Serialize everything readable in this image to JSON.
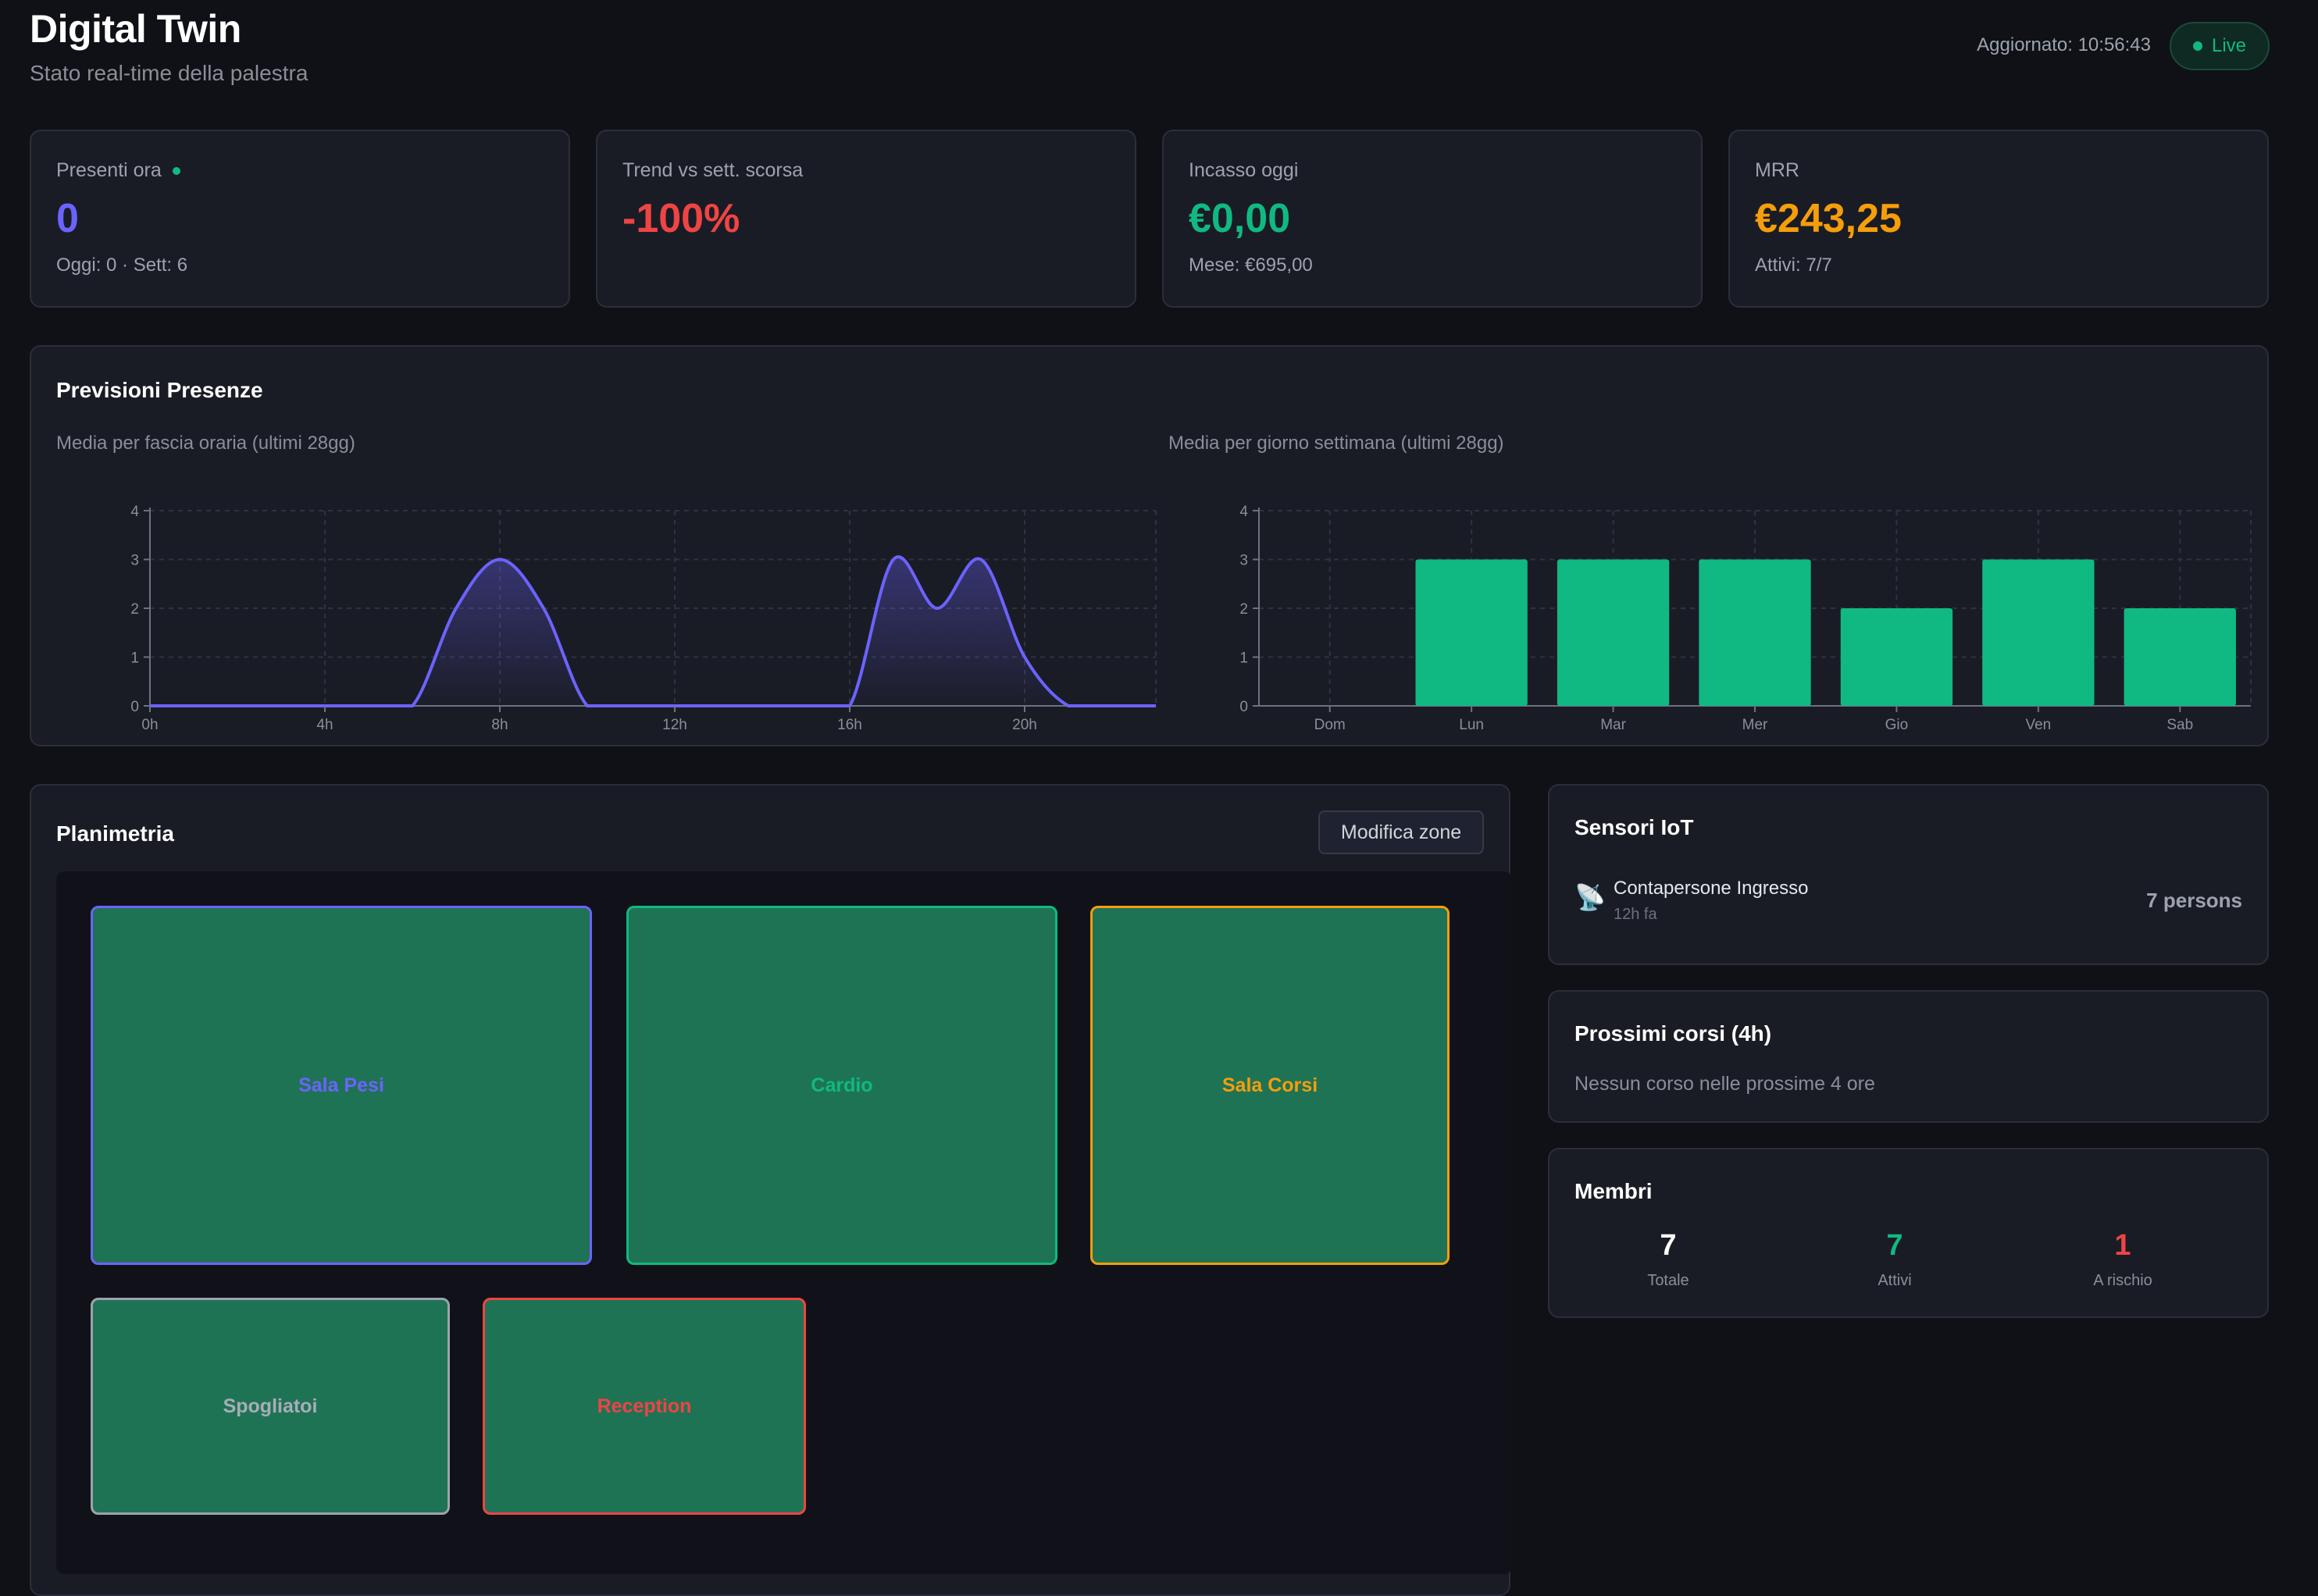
{
  "header": {
    "title": "Digital Twin",
    "subtitle": "Stato real-time della palestra",
    "updated": "Aggiornato: 10:56:43",
    "live": "Live"
  },
  "stats": [
    {
      "label": "Presenti ora",
      "value": "0",
      "note": "Oggi: 0 · Sett: 6",
      "color": "#6c63ff",
      "live_dot": true
    },
    {
      "label": "Trend vs sett. scorsa",
      "value": "-100%",
      "note": "",
      "color": "#ef4444",
      "live_dot": false
    },
    {
      "label": "Incasso oggi",
      "value": "€0,00",
      "note": "Mese: €695,00",
      "color": "#10b981",
      "live_dot": false
    },
    {
      "label": "MRR",
      "value": "€243,25",
      "note": "Attivi: 7/7",
      "color": "#f59e0b",
      "live_dot": false
    }
  ],
  "forecast": {
    "title": "Previsioni Presenze",
    "hourly_caption": "Media per fascia oraria (ultimi 28gg)",
    "weekly_caption": "Media per giorno settimana (ultimi 28gg)"
  },
  "chart_data": [
    {
      "type": "area",
      "title": "Media per fascia oraria (ultimi 28gg)",
      "x": [
        0,
        1,
        2,
        3,
        4,
        5,
        6,
        7,
        8,
        9,
        10,
        11,
        12,
        13,
        14,
        15,
        16,
        17,
        18,
        19,
        20,
        21,
        22,
        23
      ],
      "values": [
        0,
        0,
        0,
        0,
        0,
        0,
        0,
        2,
        3,
        2,
        0,
        0,
        0,
        0,
        0,
        0,
        0,
        3,
        2,
        3,
        1,
        0,
        0,
        0
      ],
      "xticks": [
        "0h",
        "4h",
        "8h",
        "12h",
        "16h",
        "20h"
      ],
      "xtick_values": [
        0,
        4,
        8,
        12,
        16,
        20
      ],
      "yticks": [
        0,
        1,
        2,
        3,
        4
      ],
      "xlim": [
        0,
        23
      ],
      "ylim": [
        0,
        4
      ],
      "grid": true,
      "color": "#6c63ff"
    },
    {
      "type": "bar",
      "title": "Media per giorno settimana (ultimi 28gg)",
      "categories": [
        "Dom",
        "Lun",
        "Mar",
        "Mer",
        "Gio",
        "Ven",
        "Sab"
      ],
      "values": [
        0,
        3,
        3,
        3,
        2,
        3,
        2
      ],
      "yticks": [
        0,
        1,
        2,
        3,
        4
      ],
      "ylim": [
        0,
        4
      ],
      "grid": true,
      "color": "#10b981"
    }
  ],
  "floorplan": {
    "title": "Planimetria",
    "edit_button": "Modifica zone",
    "zones": [
      {
        "name": "Sala Pesi",
        "color": "#6c63ff"
      },
      {
        "name": "Cardio",
        "color": "#10b981"
      },
      {
        "name": "Sala Corsi",
        "color": "#f59e0b"
      },
      {
        "name": "Spogliatoi",
        "color": "#9ca3af"
      },
      {
        "name": "Reception",
        "color": "#ef4444"
      }
    ]
  },
  "sensors": {
    "title": "Sensori IoT",
    "icon": "satellite-dish-icon",
    "items": [
      {
        "name": "Contapersone Ingresso",
        "time": "12h fa",
        "value": "7 persons"
      }
    ]
  },
  "courses": {
    "title": "Prossimi corsi (4h)",
    "empty": "Nessun corso nelle prossime 4 ore"
  },
  "members": {
    "title": "Membri",
    "stats": [
      {
        "value": "7",
        "label": "Totale",
        "color": "#ffffff"
      },
      {
        "value": "7",
        "label": "Attivi",
        "color": "#10b981"
      },
      {
        "value": "1",
        "label": "A rischio",
        "color": "#ef4444"
      }
    ]
  }
}
